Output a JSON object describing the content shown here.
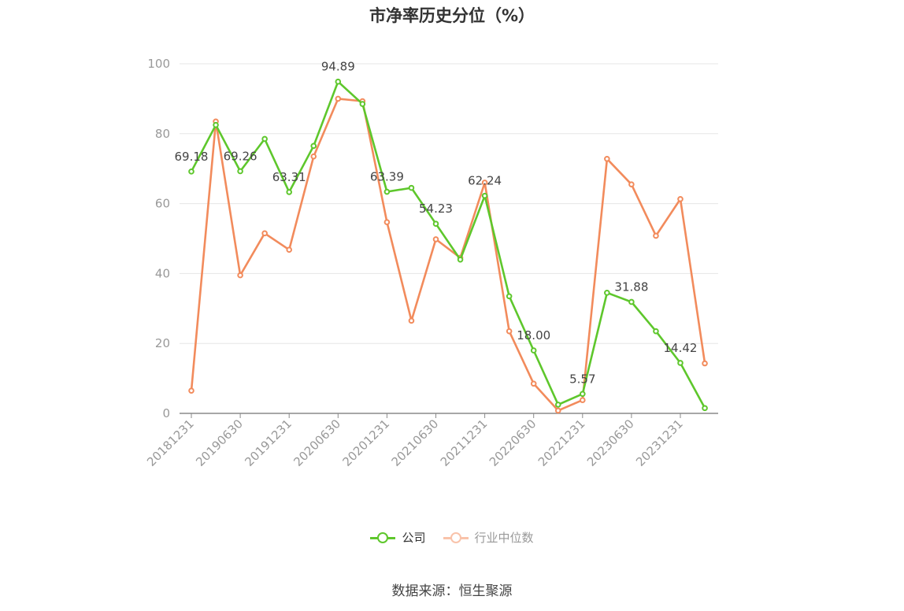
{
  "title": "市净率历史分位（%）",
  "source": "数据来源：恒生聚源",
  "colors": {
    "company": "#5ec72c",
    "industry": "#f28b5c",
    "grid": "#e6e6e6",
    "axis": "#8a8a8a",
    "tick_text": "#999999",
    "label_text": "#444444"
  },
  "chart_data": {
    "type": "line",
    "title": "市净率历史分位（%）",
    "ylim": [
      0,
      100
    ],
    "yticks": [
      0,
      20,
      40,
      60,
      80,
      100
    ],
    "grid": true,
    "legend_position": "bottom",
    "x": [
      "20181231",
      "20190331",
      "20190630",
      "20190930",
      "20191231",
      "20200331",
      "20200630",
      "20200930",
      "20201231",
      "20210331",
      "20210630",
      "20210930",
      "20211231",
      "20220331",
      "20220630",
      "20220930",
      "20221231",
      "20230331",
      "20230630",
      "20230930",
      "20231231",
      "20240331"
    ],
    "x_tick_labels": [
      "20181231",
      "20190630",
      "20191231",
      "20200630",
      "20201231",
      "20210630",
      "20211231",
      "20220630",
      "20221231",
      "20230630",
      "20231231"
    ],
    "series": [
      {
        "name": "公司",
        "values": [
          69.18,
          82.5,
          69.26,
          78.5,
          63.31,
          76.5,
          94.89,
          88.5,
          63.39,
          64.5,
          54.23,
          44.0,
          62.24,
          33.5,
          18.0,
          2.5,
          5.57,
          34.5,
          31.88,
          23.5,
          14.42,
          1.5
        ],
        "labels": [
          "69.18",
          "",
          "69.26",
          "",
          "63.31",
          "",
          "94.89",
          "",
          "63.39",
          "",
          "54.23",
          "",
          "62.24",
          "",
          "18.00",
          "",
          "5.57",
          "",
          "31.88",
          "",
          "14.42",
          ""
        ]
      },
      {
        "name": "行业中位数",
        "values": [
          6.5,
          83.5,
          39.5,
          51.5,
          46.8,
          73.5,
          90.0,
          89.3,
          54.7,
          26.5,
          49.8,
          44.5,
          66.0,
          23.5,
          8.5,
          0.8,
          3.8,
          72.8,
          65.5,
          50.8,
          61.3,
          14.3
        ]
      }
    ]
  }
}
